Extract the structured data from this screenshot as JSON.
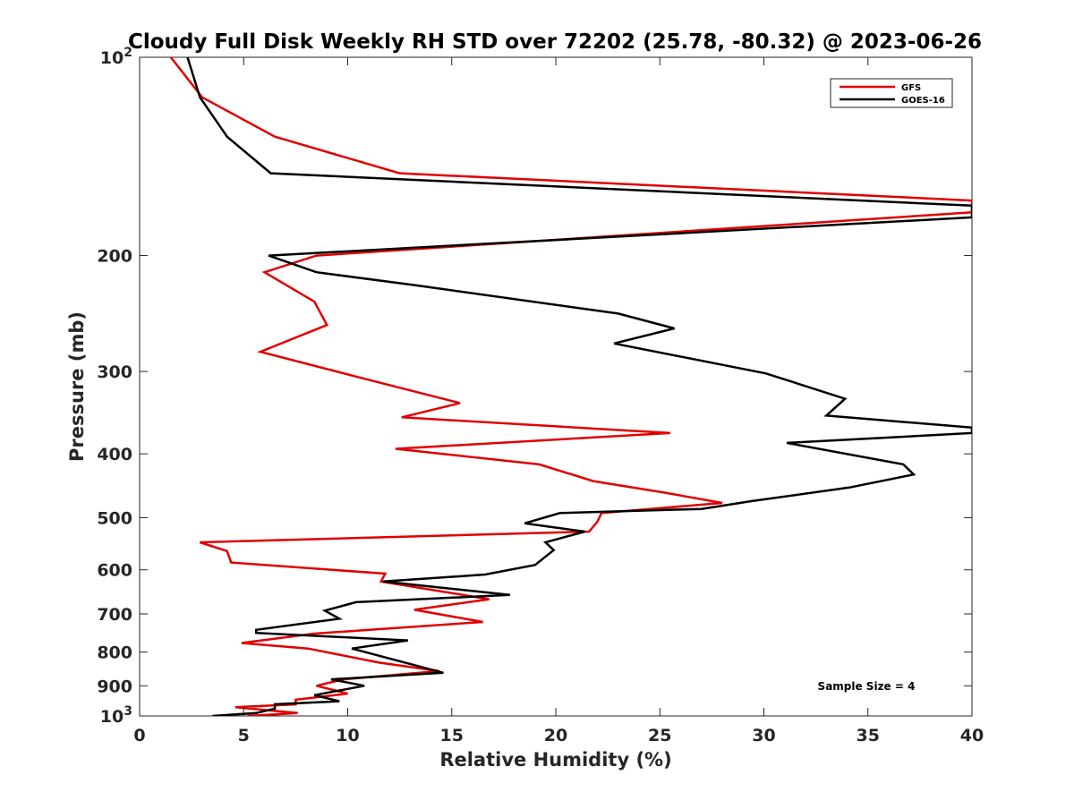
{
  "chart_data": {
    "type": "line",
    "title": "Cloudy Full Disk Weekly RH STD over 72202 (25.78, -80.32) @ 2023-06-26",
    "xlabel": "Relative Humidity (%)",
    "ylabel": "Pressure (mb)",
    "xlim": [
      0,
      40
    ],
    "ylim": [
      100,
      1000
    ],
    "y_scale": "log",
    "y_reversed": true,
    "grid": false,
    "legend_position": "top-right",
    "x_ticks": [
      "0",
      "5",
      "10",
      "15",
      "20",
      "25",
      "30",
      "35",
      "40"
    ],
    "y_ticks": [
      {
        "value": 100,
        "base": "10",
        "exp": "2"
      },
      {
        "value": 200,
        "label": "200"
      },
      {
        "value": 300,
        "label": "300"
      },
      {
        "value": 400,
        "label": "400"
      },
      {
        "value": 500,
        "label": "500"
      },
      {
        "value": 600,
        "label": "600"
      },
      {
        "value": 700,
        "label": "700"
      },
      {
        "value": 800,
        "label": "800"
      },
      {
        "value": 900,
        "label": "900"
      },
      {
        "value": 1000,
        "base": "10",
        "exp": "3"
      }
    ],
    "annotation": "Sample Size = 4",
    "series": [
      {
        "name": "GFS",
        "color": "#e00000",
        "points": [
          [
            1.5,
            100
          ],
          [
            3.0,
            115
          ],
          [
            6.5,
            132
          ],
          [
            12.5,
            150
          ],
          [
            40,
            165
          ],
          [
            40,
            172
          ],
          [
            8.5,
            200
          ],
          [
            6.0,
            212
          ],
          [
            8.4,
            235
          ],
          [
            9.0,
            255
          ],
          [
            5.8,
            280
          ],
          [
            11.2,
            310
          ],
          [
            15.4,
            335
          ],
          [
            12.6,
            352
          ],
          [
            25.5,
            372
          ],
          [
            12.3,
            393
          ],
          [
            19.2,
            415
          ],
          [
            21.8,
            440
          ],
          [
            25.2,
            458
          ],
          [
            28.0,
            475
          ],
          [
            22.2,
            492
          ],
          [
            22.0,
            507
          ],
          [
            21.6,
            525
          ],
          [
            2.9,
            545
          ],
          [
            4.2,
            562
          ],
          [
            4.4,
            585
          ],
          [
            11.8,
            608
          ],
          [
            11.6,
            625
          ],
          [
            16.8,
            665
          ],
          [
            13.2,
            690
          ],
          [
            16.5,
            720
          ],
          [
            8.4,
            750
          ],
          [
            4.9,
            775
          ],
          [
            8.1,
            790
          ],
          [
            11.5,
            830
          ],
          [
            14.4,
            855
          ],
          [
            9.8,
            880
          ],
          [
            8.5,
            900
          ],
          [
            10.0,
            925
          ],
          [
            7.5,
            945
          ],
          [
            7.5,
            960
          ],
          [
            4.6,
            970
          ],
          [
            6.9,
            985
          ],
          [
            7.6,
            990
          ],
          [
            5.2,
            1000
          ]
        ]
      },
      {
        "name": "GOES-16",
        "color": "#000000",
        "points": [
          [
            2.3,
            100
          ],
          [
            2.9,
            115
          ],
          [
            4.2,
            132
          ],
          [
            6.3,
            150
          ],
          [
            40,
            168
          ],
          [
            40,
            175
          ],
          [
            6.2,
            200
          ],
          [
            8.5,
            212
          ],
          [
            13.3,
            222
          ],
          [
            23.0,
            245
          ],
          [
            25.7,
            258
          ],
          [
            22.8,
            272
          ],
          [
            30.1,
            302
          ],
          [
            33.9,
            330
          ],
          [
            33.0,
            350
          ],
          [
            40,
            365
          ],
          [
            40,
            372
          ],
          [
            31.1,
            385
          ],
          [
            36.7,
            415
          ],
          [
            37.2,
            430
          ],
          [
            34.1,
            450
          ],
          [
            29.4,
            472
          ],
          [
            27.0,
            485
          ],
          [
            20.2,
            492
          ],
          [
            18.5,
            510
          ],
          [
            21.4,
            525
          ],
          [
            19.5,
            545
          ],
          [
            19.9,
            560
          ],
          [
            19.0,
            590
          ],
          [
            16.6,
            610
          ],
          [
            11.7,
            625
          ],
          [
            17.8,
            655
          ],
          [
            10.4,
            672
          ],
          [
            8.9,
            692
          ],
          [
            9.6,
            712
          ],
          [
            5.6,
            740
          ],
          [
            5.6,
            748
          ],
          [
            12.9,
            768
          ],
          [
            10.2,
            790
          ],
          [
            14.6,
            860
          ],
          [
            9.2,
            880
          ],
          [
            10.8,
            900
          ],
          [
            8.4,
            930
          ],
          [
            9.6,
            950
          ],
          [
            6.5,
            960
          ],
          [
            6.5,
            975
          ],
          [
            5.6,
            990
          ],
          [
            3.5,
            1000
          ]
        ]
      }
    ]
  }
}
